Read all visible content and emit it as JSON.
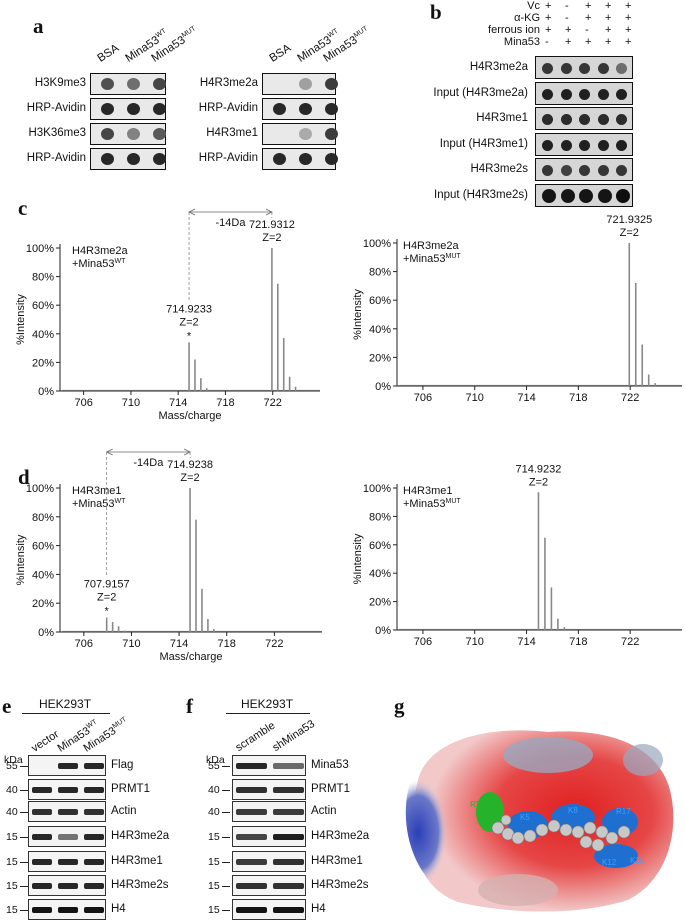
{
  "panels": {
    "a": "a",
    "b": "b",
    "c": "c",
    "d": "d",
    "e": "e",
    "f": "f",
    "g": "g"
  },
  "panel_a": {
    "left_columns": [
      "BSA",
      "Mina53",
      "Mina53"
    ],
    "left_column_sup": [
      "",
      "WT",
      "MUT"
    ],
    "left_rows": [
      "H3K9me3",
      "HRP-Avidin",
      "H3K36me3",
      "HRP-Avidin"
    ],
    "right_columns": [
      "BSA",
      "Mina53",
      "Mina53"
    ],
    "right_column_sup": [
      "",
      "WT",
      "MUT"
    ],
    "right_rows": [
      "H4R3me2a",
      "HRP-Avidin",
      "H4R3me1",
      "HRP-Avidin"
    ]
  },
  "panel_b": {
    "conditions": [
      {
        "label": "Vc",
        "signs": [
          "+",
          "-",
          "+",
          "+",
          "+"
        ]
      },
      {
        "label": "α-KG",
        "signs": [
          "+",
          "-",
          "+",
          "+",
          "+"
        ]
      },
      {
        "label": "ferrous ion",
        "signs": [
          "+",
          "+",
          "-",
          "+",
          "+"
        ]
      },
      {
        "label": "Mina53",
        "signs": [
          "-",
          "+",
          "+",
          "+",
          "+"
        ]
      }
    ],
    "rows": [
      "H4R3me2a",
      "Input (H4R3me2a)",
      "H4R3me1",
      "Input (H4R3me1)",
      "H4R3me2s",
      "Input (H4R3me2s)"
    ]
  },
  "panel_c": {
    "left": {
      "legend_line1": "H4R3me2a",
      "legend_line2": "+Mina53",
      "legend_sup": "WT",
      "peak1_mz": "714.9233",
      "peak1_z": "Z=2",
      "peak2_mz": "721.9312",
      "peak2_z": "Z=2",
      "shift": "-14Da",
      "asterisk": "*"
    },
    "right": {
      "legend_line1": "H4R3me2a",
      "legend_line2": "+Mina53",
      "legend_sup": "MUT",
      "peak_mz": "721.9325",
      "peak_z": "Z=2"
    },
    "xlabel": "Mass/charge",
    "ylabel": "%Intensity",
    "xticks": [
      "706",
      "710",
      "714",
      "718",
      "722"
    ],
    "yticks": [
      "0%",
      "20%",
      "40%",
      "60%",
      "80%",
      "100%"
    ]
  },
  "panel_d": {
    "left": {
      "legend_line1": "H4R3me1",
      "legend_line2": "+Mina53",
      "legend_sup": "WT",
      "peak1_mz": "707.9157",
      "peak1_z": "Z=2",
      "peak2_mz": "714.9238",
      "peak2_z": "Z=2",
      "shift": "-14Da",
      "asterisk": "*"
    },
    "right": {
      "legend_line1": "H4R3me1",
      "legend_line2": "+Mina53",
      "legend_sup": "MUT",
      "peak_mz": "714.9232",
      "peak_z": "Z=2"
    },
    "xlabel": "Mass/charge",
    "ylabel": "%Intensity",
    "xticks": [
      "706",
      "710",
      "714",
      "718",
      "722"
    ],
    "yticks": [
      "0%",
      "20%",
      "40%",
      "60%",
      "80%",
      "100%"
    ]
  },
  "panel_e": {
    "cell_line": "HEK293T",
    "kda": "kDa",
    "columns": [
      "vector",
      "Mina53",
      "Mina53"
    ],
    "column_sup": [
      "",
      "WT",
      "MUT"
    ],
    "rows": [
      {
        "mw": "55",
        "label": "Flag"
      },
      {
        "mw": "40",
        "label": "PRMT1"
      },
      {
        "mw": "40",
        "label": "Actin"
      },
      {
        "mw": "15",
        "label": "H4R3me2a"
      },
      {
        "mw": "15",
        "label": "H4R3me1"
      },
      {
        "mw": "15",
        "label": "H4R3me2s"
      },
      {
        "mw": "15",
        "label": "H4"
      }
    ]
  },
  "panel_f": {
    "cell_line": "HEK293T",
    "kda": "kDa",
    "columns": [
      "scramble",
      "shMina53"
    ],
    "rows": [
      {
        "mw": "55",
        "label": "Mina53"
      },
      {
        "mw": "40",
        "label": "PRMT1"
      },
      {
        "mw": "40",
        "label": "Actin"
      },
      {
        "mw": "15",
        "label": "H4R3me2a"
      },
      {
        "mw": "15",
        "label": "H4R3me1"
      },
      {
        "mw": "15",
        "label": "H4R3me2s"
      },
      {
        "mw": "15",
        "label": "H4"
      }
    ]
  },
  "panel_g": {
    "labels": [
      "R3me2a",
      "K5",
      "K8",
      "K12",
      "K16",
      "R17"
    ]
  },
  "chart_data": [
    {
      "type": "bar",
      "panel": "c-left",
      "xlabel": "Mass/charge",
      "ylabel": "%Intensity",
      "xlim": [
        704,
        726
      ],
      "ylim": [
        0,
        100
      ],
      "x": [
        714.92,
        715.42,
        715.92,
        716.42,
        721.93,
        722.43,
        722.93,
        723.43,
        723.93
      ],
      "values": [
        34,
        22,
        9,
        2,
        100,
        75,
        37,
        10,
        3
      ]
    },
    {
      "type": "bar",
      "panel": "c-right",
      "xlabel": "Mass/charge",
      "ylabel": "%Intensity",
      "xlim": [
        704,
        726
      ],
      "ylim": [
        0,
        100
      ],
      "x": [
        721.93,
        722.43,
        722.93,
        723.43,
        723.93
      ],
      "values": [
        100,
        72,
        29,
        8,
        2
      ]
    },
    {
      "type": "bar",
      "panel": "d-left",
      "xlabel": "Mass/charge",
      "ylabel": "%Intensity",
      "xlim": [
        704,
        726
      ],
      "ylim": [
        0,
        100
      ],
      "x": [
        707.92,
        708.42,
        708.92,
        709.42,
        714.92,
        715.42,
        715.92,
        716.42,
        716.92
      ],
      "values": [
        10,
        7,
        4,
        1,
        100,
        78,
        30,
        9,
        2
      ]
    },
    {
      "type": "bar",
      "panel": "d-right",
      "xlabel": "Mass/charge",
      "ylabel": "%Intensity",
      "xlim": [
        704,
        726
      ],
      "ylim": [
        0,
        100
      ],
      "x": [
        714.92,
        715.42,
        715.92,
        716.42,
        716.92
      ],
      "values": [
        97,
        65,
        30,
        8,
        2
      ]
    }
  ]
}
